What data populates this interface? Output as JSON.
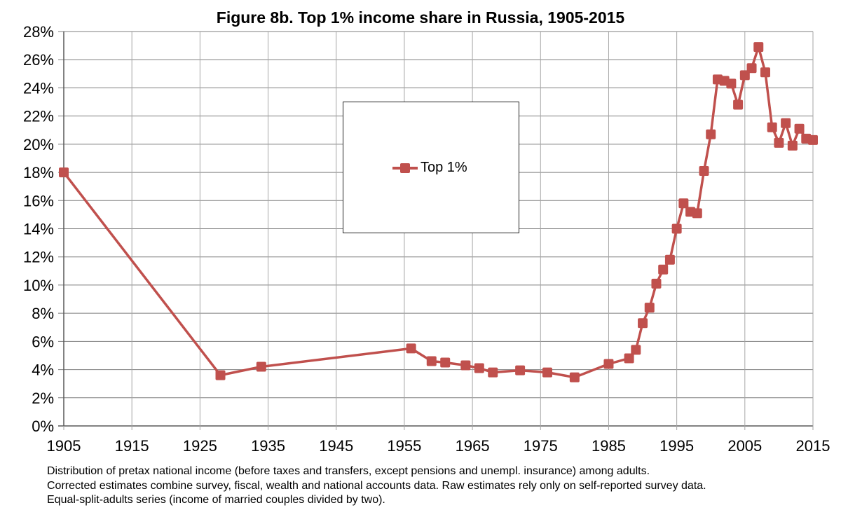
{
  "title": "Figure 8b. Top 1% income share in Russia, 1905-2015",
  "legend": {
    "label": "Top 1%"
  },
  "footnote": [
    "Distribution of pretax national income (before taxes and transfers, except pensions and unempl. insurance) among adults.",
    "Corrected estimates combine survey, fiscal, wealth and national accounts data. Raw estimates rely only on self-reported survey data.",
    "Equal-split-adults series (income of married couples divided by two)."
  ],
  "colors": {
    "series": "#c0504d",
    "grid": "#a6a6a6",
    "axis": "#595959"
  },
  "chart_data": {
    "type": "line",
    "title": "Figure 8b. Top 1% income share in Russia, 1905-2015",
    "xlabel": "",
    "ylabel": "",
    "xlim": [
      1905,
      2015
    ],
    "ylim": [
      0,
      28
    ],
    "x_ticks": [
      "1905",
      "1915",
      "1925",
      "1935",
      "1945",
      "1955",
      "1965",
      "1975",
      "1985",
      "1995",
      "2005",
      "2015"
    ],
    "y_ticks": [
      "0%",
      "2%",
      "4%",
      "6%",
      "8%",
      "10%",
      "12%",
      "14%",
      "16%",
      "18%",
      "20%",
      "22%",
      "24%",
      "26%",
      "28%"
    ],
    "grid": true,
    "legend_position": "inside-top-center",
    "series": [
      {
        "name": "Top 1%",
        "x": [
          1905,
          1928,
          1934,
          1956,
          1959,
          1961,
          1964,
          1966,
          1968,
          1972,
          1976,
          1980,
          1985,
          1988,
          1989,
          1990,
          1991,
          1992,
          1993,
          1994,
          1995,
          1996,
          1997,
          1998,
          1999,
          2000,
          2001,
          2002,
          2003,
          2004,
          2005,
          2006,
          2007,
          2008,
          2009,
          2010,
          2011,
          2012,
          2013,
          2014,
          2015
        ],
        "values": [
          18.0,
          3.6,
          4.2,
          5.5,
          4.6,
          4.5,
          4.3,
          4.1,
          3.8,
          3.95,
          3.8,
          3.45,
          4.4,
          4.8,
          5.4,
          7.3,
          8.4,
          10.1,
          11.1,
          11.8,
          14.0,
          15.8,
          15.2,
          15.1,
          18.1,
          20.7,
          24.6,
          24.5,
          24.3,
          22.8,
          24.9,
          25.4,
          26.9,
          25.1,
          21.2,
          20.1,
          21.5,
          19.9,
          21.1,
          20.4,
          20.3
        ]
      }
    ]
  }
}
